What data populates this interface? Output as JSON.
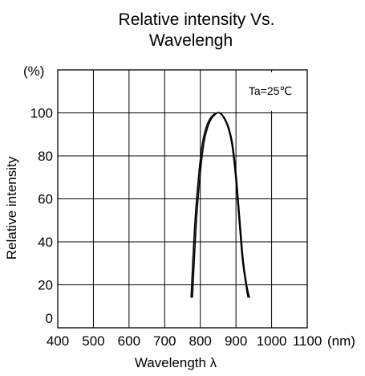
{
  "chart_data": {
    "type": "line",
    "title_line1": "Relative intensity Vs.",
    "title_line2": "Wavelengh",
    "xlabel": "Wavelength  λ",
    "ylabel": "Relative intensity",
    "x_unit": "(nm)",
    "y_unit": "(%)",
    "annotation": "Ta=25℃",
    "xlim": [
      400,
      1100
    ],
    "ylim": [
      0,
      120
    ],
    "x_ticks": [
      400,
      500,
      600,
      700,
      800,
      900,
      1000,
      1100
    ],
    "x_tick_labels": [
      "400",
      "500",
      "600",
      "700",
      "800",
      "900",
      "1000",
      "1100"
    ],
    "y_ticks": [
      0,
      20,
      40,
      60,
      80,
      100
    ],
    "y_tick_labels": [
      "0",
      "20",
      "40",
      "60",
      "80",
      "100"
    ],
    "grid": true,
    "series": [
      {
        "x": [
          778,
          782,
          790,
          800,
          810,
          820,
          830,
          840,
          848,
          855,
          862,
          870,
          880,
          890,
          900,
          910,
          920,
          930,
          938
        ],
        "values": [
          14,
          28,
          52,
          72,
          86,
          93,
          97,
          99,
          100,
          100,
          99,
          97,
          93,
          86,
          72,
          52,
          32,
          20,
          14
        ]
      },
      {
        "x": [
          774,
          778,
          786,
          796,
          806,
          816,
          826,
          836,
          846,
          853,
          860,
          868,
          878,
          888,
          898,
          908,
          918,
          928,
          934
        ],
        "values": [
          14,
          28,
          52,
          72,
          86,
          93,
          97,
          99,
          100,
          100,
          99,
          97,
          93,
          86,
          72,
          52,
          32,
          20,
          14
        ]
      }
    ]
  }
}
